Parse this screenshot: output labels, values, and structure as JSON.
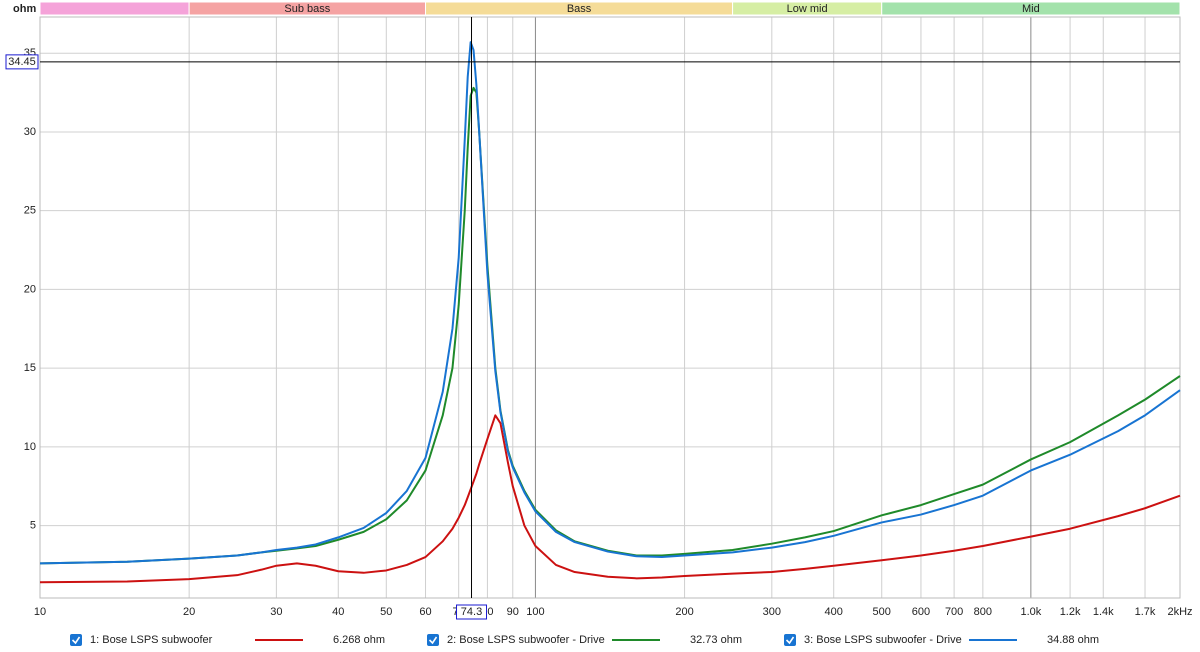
{
  "chart_data": {
    "type": "line",
    "y_label": "ohm",
    "xscale": "log",
    "grid": true,
    "xlim": [
      10,
      2000
    ],
    "ylim": [
      0.4,
      37.3
    ],
    "xticks": [
      10,
      20,
      30,
      40,
      50,
      60,
      70,
      80,
      90,
      100,
      200,
      300,
      400,
      500,
      600,
      700,
      800,
      {
        "value": 1000,
        "label": "1.0k"
      },
      {
        "value": 1200,
        "label": "1.2k"
      },
      {
        "value": 1400,
        "label": "1.4k"
      },
      {
        "value": 1700,
        "label": "1.7k"
      },
      {
        "value": 2000,
        "label": "2kHz"
      }
    ],
    "yticks": [
      5,
      10,
      15,
      20,
      25,
      30,
      35
    ],
    "bands": [
      {
        "from": 10,
        "to": 20,
        "label": null,
        "color": "#f5a3d9"
      },
      {
        "from": 20,
        "to": 60,
        "label": "Sub bass",
        "color": "#f5a3a3"
      },
      {
        "from": 60,
        "to": 250,
        "label": "Bass",
        "color": "#f5dc98"
      },
      {
        "from": 250,
        "to": 500,
        "label": "Low mid",
        "color": "#d6eea4"
      },
      {
        "from": 500,
        "to": 2000,
        "label": "Mid",
        "color": "#a3e2ab"
      }
    ],
    "cursor": {
      "x": 74.3,
      "y": 34.45
    },
    "x": [
      10,
      15,
      20,
      25,
      28,
      30,
      33,
      36,
      40,
      45,
      50,
      55,
      60,
      65,
      68,
      70,
      72,
      73,
      74,
      75,
      76,
      77,
      80,
      83,
      85,
      88,
      90,
      95,
      100,
      110,
      120,
      140,
      160,
      180,
      200,
      250,
      300,
      350,
      400,
      500,
      600,
      700,
      800,
      1000,
      1200,
      1500,
      1700,
      2000
    ],
    "series": [
      {
        "name": "1: Bose LSPS subwoofer",
        "color": "#cc1111",
        "readout": 6.268,
        "readout_label": "6.268 ohm",
        "values": [
          1.4,
          1.45,
          1.6,
          1.85,
          2.2,
          2.45,
          2.6,
          2.45,
          2.1,
          2.0,
          2.15,
          2.5,
          3.0,
          4.0,
          4.8,
          5.5,
          6.3,
          6.8,
          7.3,
          7.8,
          8.3,
          8.9,
          10.5,
          12.0,
          11.5,
          9.0,
          7.5,
          5.0,
          3.7,
          2.5,
          2.05,
          1.75,
          1.65,
          1.7,
          1.8,
          1.95,
          2.05,
          2.25,
          2.45,
          2.8,
          3.1,
          3.4,
          3.7,
          4.3,
          4.8,
          5.6,
          6.1,
          6.9
        ]
      },
      {
        "name": "2: Bose LSPS subwoofer - Drive",
        "color": "#1f8a2a",
        "readout": 32.73,
        "readout_label": "32.73 ohm",
        "values": [
          2.6,
          2.7,
          2.9,
          3.1,
          3.3,
          3.4,
          3.55,
          3.7,
          4.1,
          4.6,
          5.4,
          6.6,
          8.5,
          12,
          15,
          19,
          25,
          29,
          32.3,
          32.8,
          32.5,
          30,
          21.5,
          15,
          12.3,
          9.8,
          8.8,
          7.2,
          6.0,
          4.7,
          4.0,
          3.4,
          3.1,
          3.1,
          3.2,
          3.45,
          3.85,
          4.25,
          4.65,
          5.65,
          6.3,
          7.0,
          7.6,
          9.2,
          10.3,
          12.0,
          13.0,
          14.5
        ]
      },
      {
        "name": "3: Bose LSPS subwoofer - Drive",
        "color": "#1874d2",
        "readout": 34.88,
        "readout_label": "34.88 ohm",
        "values": [
          2.6,
          2.7,
          2.9,
          3.1,
          3.3,
          3.45,
          3.6,
          3.8,
          4.25,
          4.85,
          5.8,
          7.2,
          9.3,
          13.5,
          17.5,
          22,
          29.5,
          33.5,
          35.7,
          35.2,
          33,
          30,
          21,
          14.8,
          12.2,
          9.7,
          8.7,
          7.1,
          5.9,
          4.6,
          3.95,
          3.35,
          3.05,
          3.0,
          3.1,
          3.3,
          3.6,
          3.95,
          4.35,
          5.2,
          5.7,
          6.3,
          6.9,
          8.5,
          9.5,
          11.0,
          12.0,
          13.6
        ]
      }
    ]
  }
}
